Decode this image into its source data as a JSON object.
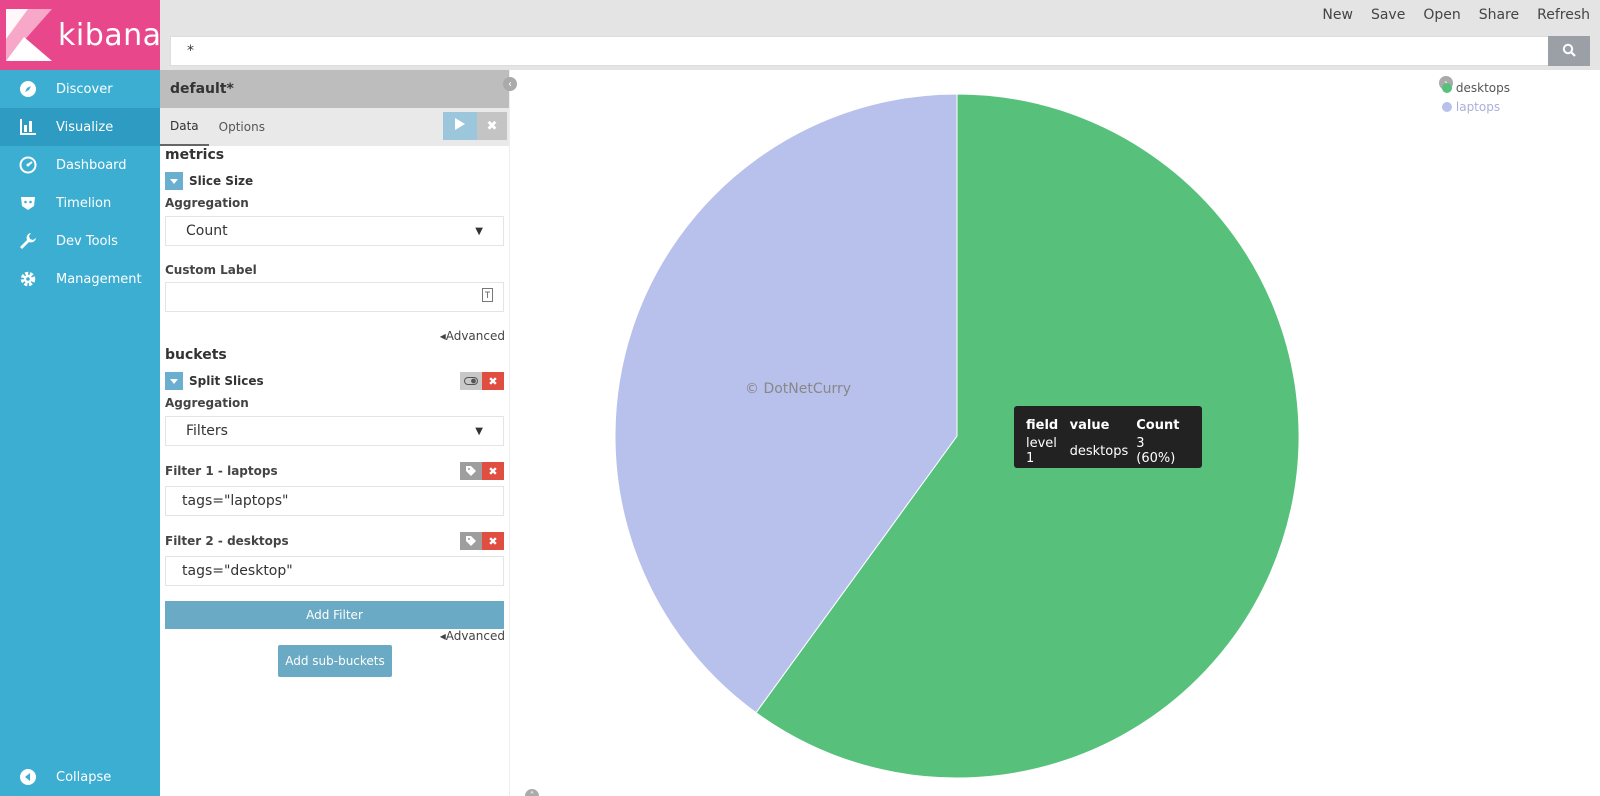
{
  "app": {
    "name": "kibana"
  },
  "nav": {
    "items": [
      {
        "label": "Discover",
        "icon": "compass-icon"
      },
      {
        "label": "Visualize",
        "icon": "bar-chart-icon"
      },
      {
        "label": "Dashboard",
        "icon": "dashboard-icon"
      },
      {
        "label": "Timelion",
        "icon": "timelion-icon"
      },
      {
        "label": "Dev Tools",
        "icon": "wrench-icon"
      },
      {
        "label": "Management",
        "icon": "gear-icon"
      }
    ],
    "active": "Visualize",
    "collapse_label": "Collapse"
  },
  "topmenu": {
    "new": "New",
    "save": "Save",
    "open": "Open",
    "share": "Share",
    "refresh": "Refresh"
  },
  "search": {
    "value": "*"
  },
  "editor": {
    "title": "default*",
    "tabs": {
      "data": "Data",
      "options": "Options"
    },
    "metrics": {
      "heading": "metrics",
      "agg_name": "Slice Size",
      "aggregation_label": "Aggregation",
      "aggregation_value": "Count",
      "custom_label": "Custom Label",
      "custom_value": "",
      "advanced": "Advanced"
    },
    "buckets": {
      "heading": "buckets",
      "agg_name": "Split Slices",
      "aggregation_label": "Aggregation",
      "aggregation_value": "Filters",
      "filter1_label": "Filter 1 - laptops",
      "filter1_value": "tags=\"laptops\"",
      "filter2_label": "Filter 2 - desktops",
      "filter2_value": "tags=\"desktop\"",
      "add_filter": "Add Filter",
      "advanced": "Advanced",
      "add_sub_buckets": "Add sub-buckets"
    }
  },
  "chart_data": {
    "type": "pie",
    "categories": [
      "desktops",
      "laptops"
    ],
    "values": [
      3,
      2
    ],
    "colors": [
      "#57c17b",
      "#b8c0ec"
    ],
    "legend": "top-right"
  },
  "legend": {
    "items": [
      "desktops",
      "laptops"
    ]
  },
  "watermark": "© DotNetCurry",
  "tooltip": {
    "headers": [
      "field",
      "value",
      "Count"
    ],
    "row": [
      "level 1",
      "desktops",
      "3 (60%)"
    ]
  },
  "colors": {
    "sidebar": "#3caed2",
    "logo": "#e8488b",
    "accent": "#6aaac4"
  }
}
